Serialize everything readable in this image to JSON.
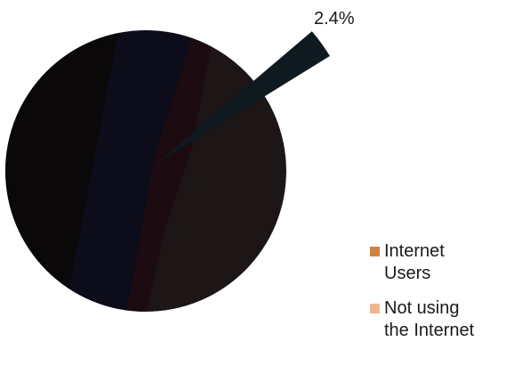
{
  "chart_data": {
    "type": "pie",
    "title": "",
    "categories": [
      "Internet Users",
      "Not using the Internet"
    ],
    "values": [
      2.4,
      97.6
    ],
    "value_unit": "%",
    "data_labels": [
      "2.4%",
      ""
    ],
    "legend_position": "right-bottom",
    "legend": {
      "items": [
        {
          "label_line1": "Internet",
          "label_line2": "Users",
          "color": "#D0813F"
        },
        {
          "label_line1": "Not using",
          "label_line2": "the Internet",
          "color": "#F2B592"
        }
      ]
    },
    "colors": {
      "rendered_main_slice": "#1c1616",
      "rendered_exploded_slice": "#0e1a1f",
      "band_dark": "#0a0809",
      "band_navy": "#0c0c1a",
      "band_maroon": "#1c0c12"
    }
  }
}
